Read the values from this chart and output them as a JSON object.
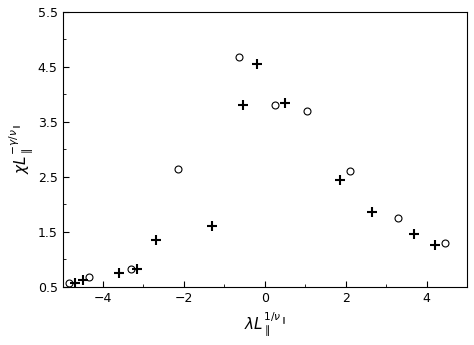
{
  "title": "",
  "xlabel": "$\\lambda L_{\\parallel}^{1/\\nu_{\\parallel}}$",
  "ylabel": "$\\chi L_{\\parallel}^{-\\gamma/\\nu_{\\parallel}}$",
  "xlim": [
    -5,
    5
  ],
  "ylim": [
    0.5,
    5.5
  ],
  "xticks": [
    -4,
    -2,
    0,
    2,
    4
  ],
  "yticks": [
    0.5,
    1.5,
    2.5,
    3.5,
    4.5,
    5.5
  ],
  "series_plus": {
    "x": [
      -4.7,
      -4.5,
      -3.6,
      -3.15,
      -2.7,
      -1.3,
      -0.55,
      -0.2,
      0.5,
      1.85,
      2.65,
      3.7,
      4.2
    ],
    "y": [
      0.57,
      0.62,
      0.75,
      0.82,
      1.35,
      1.6,
      3.8,
      4.55,
      3.85,
      2.45,
      1.85,
      1.45,
      1.25
    ],
    "marker": "+",
    "color": "black",
    "markersize": 7,
    "linewidth": 1.5
  },
  "series_circle": {
    "x": [
      -4.85,
      -4.35,
      -3.3,
      -2.15,
      -0.65,
      0.25,
      1.05,
      2.1,
      3.3,
      4.45
    ],
    "y": [
      0.57,
      0.68,
      0.82,
      2.65,
      4.68,
      3.8,
      3.7,
      2.6,
      1.75,
      1.3
    ],
    "marker": "o",
    "color": "black",
    "markersize": 5,
    "linewidth": 0,
    "fillstyle": "none"
  },
  "background_color": "#ffffff"
}
